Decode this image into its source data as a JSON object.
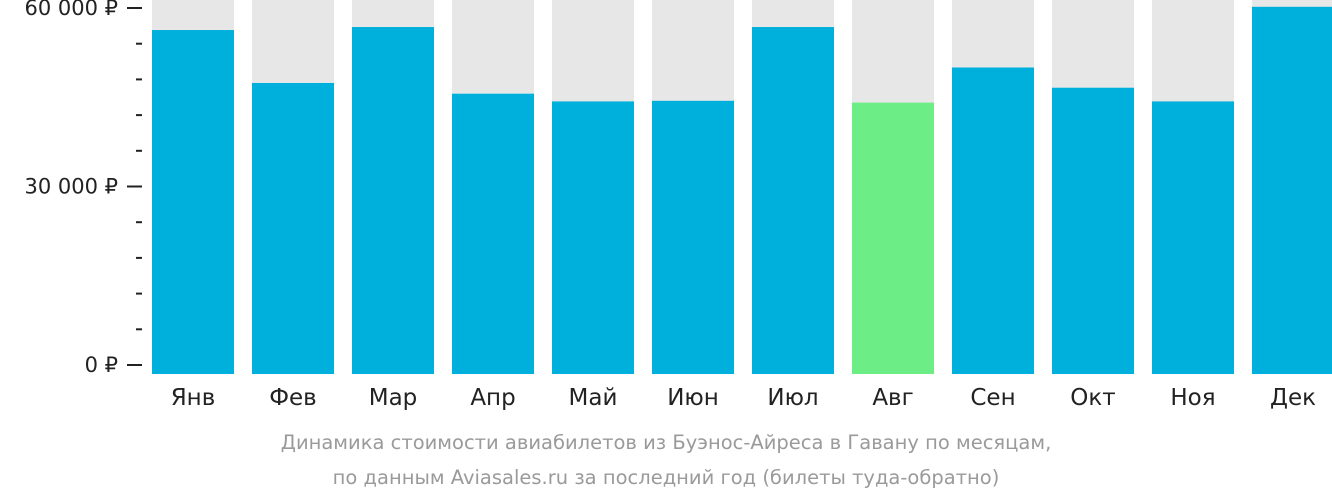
{
  "chart_data": {
    "type": "bar",
    "categories": [
      "Янв",
      "Фев",
      "Мар",
      "Апр",
      "Май",
      "Июн",
      "Июл",
      "Авг",
      "Сен",
      "Окт",
      "Ноя",
      "Дек"
    ],
    "values": [
      56300,
      47400,
      56800,
      45600,
      44300,
      44400,
      56800,
      44100,
      50000,
      46600,
      44300,
      60200
    ],
    "highlight_index": 7,
    "ylim": [
      0,
      63000
    ],
    "y_major_ticks": [
      0,
      30000,
      60000
    ],
    "y_tick_labels": [
      "0 ₽",
      "30 000 ₽",
      "60 000 ₽"
    ],
    "y_minor_step": 6000,
    "colors": {
      "bar": "#00b0dc",
      "highlight": "#6ced86",
      "track": "#e7e7e7",
      "tick": "#222222"
    }
  },
  "caption": {
    "line1": "Динамика стоимости авиабилетов из Буэнос-Айреса в Гавану по месяцам,",
    "line2": "по данным Aviasales.ru за последний год (билеты туда-обратно)"
  }
}
